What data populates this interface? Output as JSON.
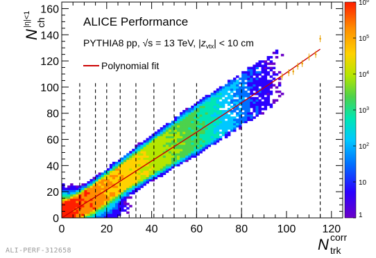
{
  "footer_id": "ALI-PERF-312658",
  "legend": {
    "title": "ALICE Performance",
    "info_prefix": "PYTHIA8  pp, ",
    "info_sqrt": "√",
    "info_mid": "s = 13 TeV, |",
    "info_z": "z",
    "info_vtx": "vtx",
    "info_suffix": "| < 10 cm",
    "fit_label": "Polynomial fit"
  },
  "axis_titles": {
    "x_main": "N",
    "x_sub": "trk",
    "x_sup": "corr",
    "y_main": "N",
    "y_sub": "ch",
    "y_sup": "|η|<1"
  },
  "colors": {
    "fit_line": "#cc0000",
    "error_points": "#e8a000",
    "divider_lines": "#000000",
    "palette": [
      "#6a00c8",
      "#2a00ff",
      "#0070ff",
      "#00c8ff",
      "#00e6b4",
      "#4cd24c",
      "#b4e600",
      "#ffd200",
      "#ff8c00",
      "#ff1e00"
    ]
  },
  "chart_data": {
    "type": "heatmap",
    "title": "ALICE Performance",
    "subtitle": "PYTHIA8  pp, √s = 13 TeV, |z_vtx| < 10 cm",
    "xlabel": "N_trk^corr",
    "ylabel": "N_ch^|η|<1",
    "xlim": [
      0,
      125
    ],
    "ylim": [
      0,
      165
    ],
    "x_ticks": [
      0,
      20,
      40,
      60,
      80,
      100,
      120
    ],
    "y_ticks": [
      0,
      20,
      40,
      60,
      80,
      100,
      120,
      140,
      160
    ],
    "z_scale": "log",
    "z_range": [
      1,
      1000000
    ],
    "z_tick_labels": [
      "10^6",
      "10^5",
      "10^4",
      "10^3",
      "10^2",
      "10",
      "1"
    ],
    "fit": {
      "name": "Polynomial fit",
      "x": [
        0,
        20,
        40,
        60,
        80,
        100,
        115
      ],
      "y": [
        0,
        21.5,
        43.5,
        65.5,
        88,
        111,
        129
      ]
    },
    "class_boundaries_x": [
      8,
      15,
      20,
      26,
      33,
      41,
      50,
      60,
      80,
      115
    ],
    "band_ridges": [
      {
        "name": "upper",
        "slope": 1.28
      },
      {
        "name": "main",
        "slope": 1.12
      },
      {
        "name": "lower",
        "slope": 0.96
      }
    ],
    "error_points": {
      "x": [
        98,
        101,
        103,
        105,
        107,
        110,
        113,
        115
      ],
      "y": [
        108,
        111,
        112,
        116,
        118,
        123,
        125,
        137
      ]
    },
    "legend_position": "top-left",
    "grid": false
  }
}
